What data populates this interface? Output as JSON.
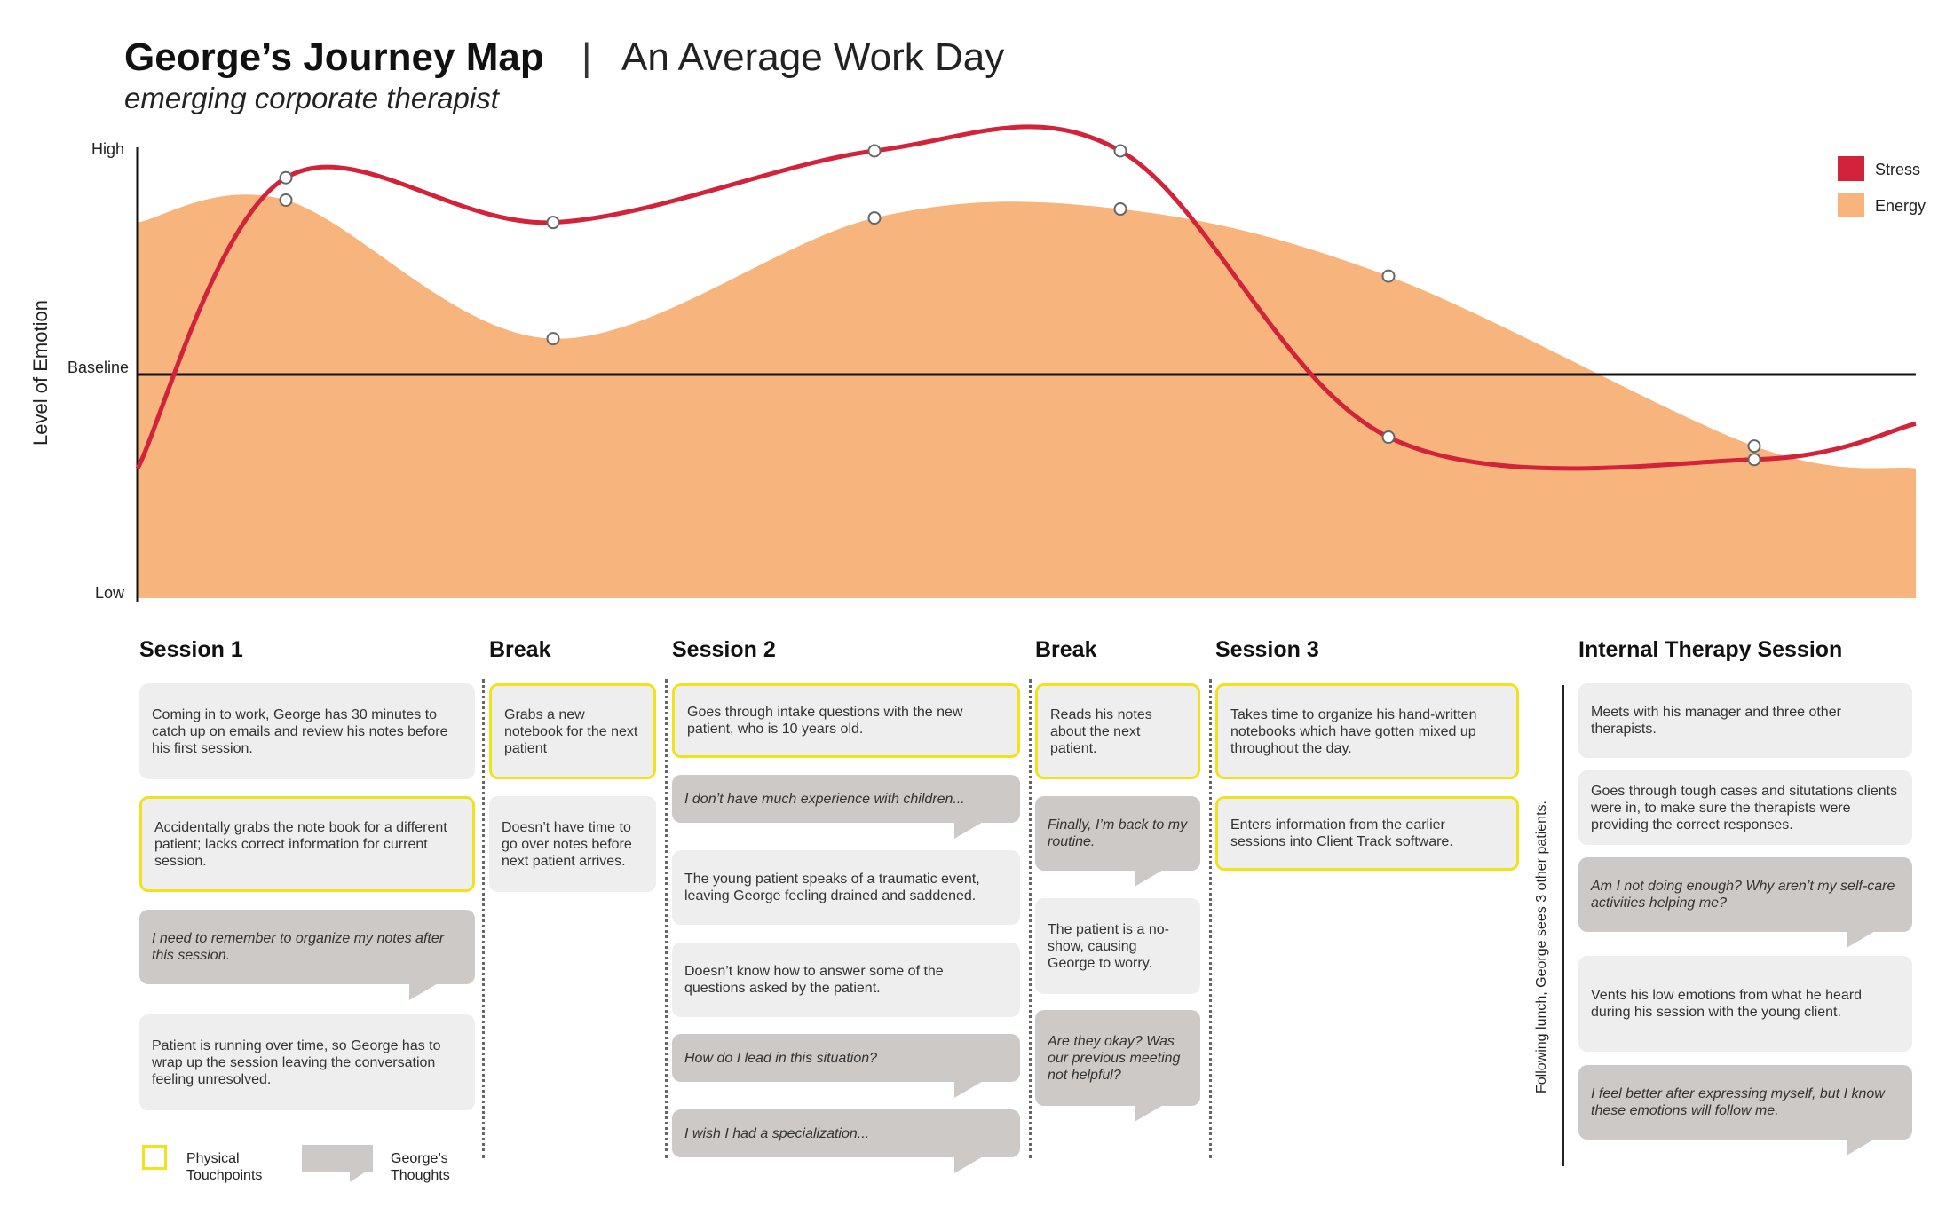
{
  "header": {
    "title": "George’s Journey Map",
    "separator": "|",
    "subtitle_right": "An Average Work Day",
    "tagline": "emerging corporate therapist"
  },
  "chart_data": {
    "type": "area",
    "ylabel": "Level of Emotion",
    "y_ticks": [
      "High",
      "Baseline",
      "Low"
    ],
    "ylim": [
      0,
      10
    ],
    "baseline": 5,
    "legend_position": "top-right",
    "x_stages": [
      "Session 1",
      "Break",
      "Session 2",
      "Break",
      "Session 3",
      "Internal Therapy Session"
    ],
    "series": [
      {
        "name": "Stress",
        "type": "line",
        "color": "#d2233a",
        "points": [
          [
            0,
            2.9
          ],
          [
            1,
            9.4
          ],
          [
            2,
            8.4
          ],
          [
            3,
            10
          ],
          [
            4,
            10
          ],
          [
            5,
            3.6
          ],
          [
            6,
            3.1
          ]
        ],
        "end": 3.9
      },
      {
        "name": "Energy",
        "type": "area",
        "color": "#f8b47d",
        "points": [
          [
            0,
            8.4
          ],
          [
            1,
            8.9
          ],
          [
            2,
            5.8
          ],
          [
            3,
            8.5
          ],
          [
            4,
            8.7
          ],
          [
            5,
            7.2
          ],
          [
            6,
            3.4
          ]
        ],
        "end": 2.9
      }
    ]
  },
  "columns": {
    "session1": "Session 1",
    "break1": "Break",
    "session2": "Session 2",
    "break2": "Break",
    "session3": "Session 3",
    "internal": "Internal Therapy Session"
  },
  "cards": {
    "s1_c1": "Coming in to work, George has 30 minutes to catch up on emails and review his notes before his first session.",
    "s1_c2": "Accidentally grabs the note book for a different patient; lacks correct information for current session.",
    "s1_c3": "I need to remember to organize my notes after this session.",
    "s1_c4": "Patient is running over time, so George has to wrap up the session leaving the conversation feeling unresolved.",
    "b1_c1": "Grabs a new notebook for the next patient",
    "b1_c2": "Doesn’t have time to go over notes before next patient arrives.",
    "s2_c1": "Goes through intake questions with the new patient, who is 10 years old.",
    "s2_c2": "I don’t have much experience with children...",
    "s2_c3": "The young patient speaks of a traumatic event, leaving George feeling drained and saddened.",
    "s2_c4": "Doesn’t know how to answer some of the questions asked by the patient.",
    "s2_c5": "How do I lead in this situation?",
    "s2_c6": "I wish I had a specialization...",
    "b2_c1": "Reads his notes about the next patient.",
    "b2_c2": "Finally, I’m back to my routine.",
    "b2_c3": "The patient is a no-show, causing George to worry.",
    "b2_c4": "Are they okay? Was our previous meeting not helpful?",
    "s3_c1": "Takes time to organize his hand-written notebooks which have gotten mixed up throughout the day.",
    "s3_c2": "Enters information from the earlier sessions into Client Track software.",
    "it_c1": "Meets with his manager and three other therapists.",
    "it_c2": "Goes through tough cases and situtations clients were in, to make sure the therapists were providing the correct responses.",
    "it_c3": "Am I not doing enough? Why aren’t my self-care activities helping me?",
    "it_c4": "Vents his low emotions from what he heard during his session with the young client.",
    "it_c5": "I feel better after expressing myself, but I know these emotions will follow me."
  },
  "side_note": "Following lunch, George sees 3 other patients.",
  "legend": {
    "touchpoints": "Physical Touchpoints",
    "thoughts": "George’s Thoughts"
  }
}
